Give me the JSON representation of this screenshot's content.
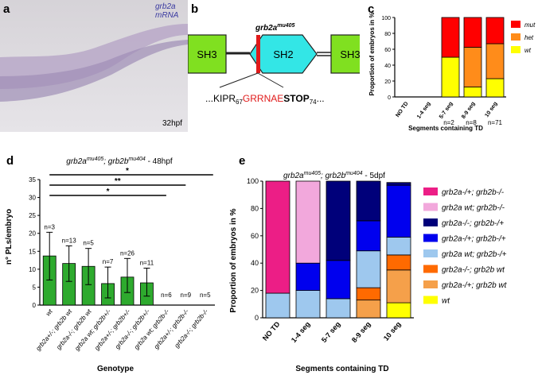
{
  "panel_a": {
    "letter": "a",
    "label": "grb2a mRNA",
    "stage": "32hpf"
  },
  "panel_b": {
    "letter": "b",
    "title_gene": "grb2a",
    "title_allele": "mu405",
    "domains": [
      "SH3",
      "SH2",
      "SH3"
    ],
    "seq_prefix": "...KIPR",
    "seq_sub1": "67",
    "seq_mut": "GRRNAE",
    "seq_stop": "STOP",
    "seq_sub2": "74",
    "seq_suffix": "..."
  },
  "panel_c": {
    "letter": "c",
    "n_labels": [
      "n=2",
      "n=8",
      "n=71"
    ]
  },
  "panel_d": {
    "letter": "d",
    "sig_labels": [
      "*",
      "**",
      "*"
    ],
    "n_labels": [
      "n=3",
      "n=13",
      "n=5",
      "n=7",
      "n=26",
      "n=11",
      "n=6",
      "n=9",
      "n=5"
    ]
  },
  "panel_e": {
    "letter": "e"
  },
  "chart_data": [
    {
      "type": "bar",
      "stacked": true,
      "title": "",
      "xlabel": "Segments containing TD",
      "ylabel": "Proportion of embryos in %",
      "categories": [
        "NO TD",
        "1-4 seg",
        "5-7 seg",
        "8-9 seg",
        "10 seg"
      ],
      "ylim": [
        0,
        100
      ],
      "yticks": [
        0,
        20,
        40,
        60,
        80,
        100
      ],
      "legend_position": "right",
      "series": [
        {
          "name": "wt",
          "color": "#ffff00",
          "values": [
            0,
            0,
            50,
            12.5,
            23
          ]
        },
        {
          "name": "het",
          "color": "#ff8c1a",
          "values": [
            0,
            0,
            0,
            50,
            44
          ]
        },
        {
          "name": "mut",
          "color": "#ff0000",
          "values": [
            0,
            0,
            50,
            37.5,
            33
          ]
        }
      ]
    },
    {
      "type": "bar",
      "title": "grb2a^mu405; grb2b^mu404 - 48hpf",
      "xlabel": "Genotype",
      "ylabel": "n° PLs/embryo",
      "ylim": [
        0,
        35
      ],
      "yticks": [
        0,
        5,
        10,
        15,
        20,
        25,
        30,
        35
      ],
      "color": "#2eaa2e",
      "categories": [
        "wt",
        "grb2a+/-; grb2b wt",
        "grb2a-/-; grb2b wt",
        "grb2a wt; grb2b+/-",
        "grb2a+/-; grb2b+/-",
        "grb2a-/-; grb2b+/-",
        "grb2a wt; grb2b-/-",
        "grb2a+/-; grb2b-/-",
        "grb2a-/-; grb2b-/-"
      ],
      "values": [
        13.7,
        11.6,
        10.8,
        6.0,
        7.8,
        6.2,
        0,
        0,
        0
      ],
      "error_low": [
        7,
        6.6,
        5.7,
        2,
        3.5,
        2.5,
        0,
        0,
        0
      ],
      "error_high": [
        20.3,
        16.5,
        15.8,
        10.6,
        13,
        10.3,
        0,
        0,
        0
      ]
    },
    {
      "type": "bar",
      "stacked": true,
      "title": "grb2a^mu405; grb2b^mu404 - 5dpf",
      "xlabel": "Segments containing TD",
      "ylabel": "Proportion of embryos in %",
      "categories": [
        "NO TD",
        "1-4 seg",
        "5-7 seg",
        "8-9 seg",
        "10 seg"
      ],
      "ylim": [
        0,
        100
      ],
      "yticks": [
        0,
        20,
        40,
        60,
        80,
        100
      ],
      "legend_position": "right",
      "series": [
        {
          "name": "wt",
          "color": "#ffff00",
          "values": [
            0,
            0,
            0,
            0,
            11
          ]
        },
        {
          "name": "grb2a-/+; grb2b wt",
          "color": "#f5a04a",
          "values": [
            0,
            0,
            0,
            13,
            24
          ]
        },
        {
          "name": "grb2a-/-; grb2b wt",
          "color": "#ff6a00",
          "values": [
            0,
            0,
            0,
            9,
            11
          ]
        },
        {
          "name": "grb2a wt; grb2b-/+",
          "color": "#9ec8ee",
          "values": [
            18,
            20,
            14,
            27,
            13
          ]
        },
        {
          "name": "grb2a-/+; grb2b-/+",
          "color": "#0000ee",
          "values": [
            0,
            20,
            28,
            22,
            38
          ]
        },
        {
          "name": "grb2a-/-; grb2b-/+",
          "color": "#00007a",
          "values": [
            0,
            0,
            58,
            29,
            2
          ]
        },
        {
          "name": "grb2a wt; grb2b-/-",
          "color": "#f2a8dc",
          "values": [
            0,
            60,
            0,
            0,
            0
          ]
        },
        {
          "name": "grb2a-/+; grb2b-/-",
          "color": "#ec1e86",
          "values": [
            82,
            0,
            0,
            0,
            0
          ]
        }
      ]
    }
  ]
}
